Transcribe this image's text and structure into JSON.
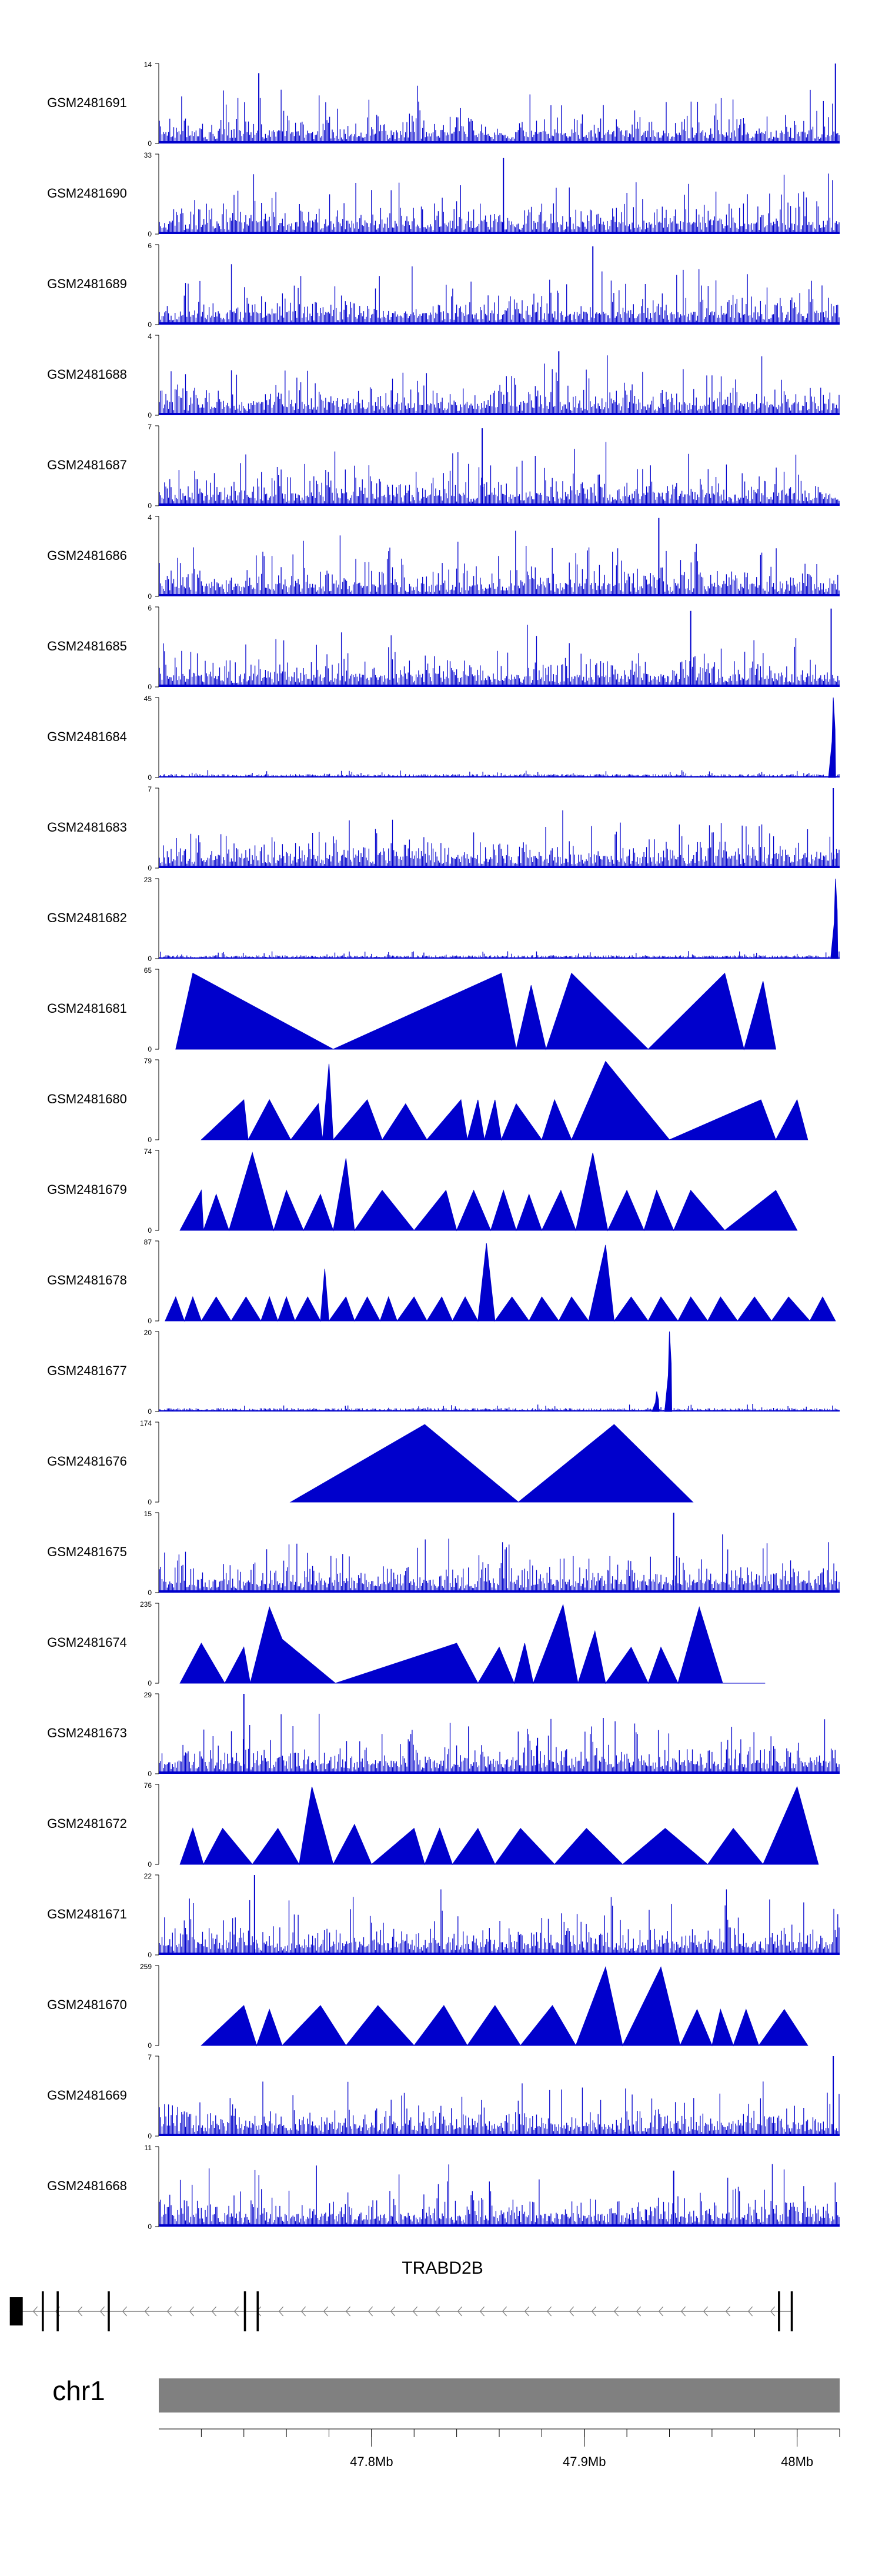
{
  "chart_data": {
    "type": "area",
    "colors": {
      "signal": "#0000cc",
      "ideogram": "#808080"
    },
    "tracks": [
      {
        "name": "GSM2481691",
        "ylim": [
          0,
          14
        ],
        "style": "spiky",
        "peaks": [
          [
            47.747,
            0.88
          ],
          [
            48.018,
            1.0
          ]
        ]
      },
      {
        "name": "GSM2481690",
        "ylim": [
          0,
          33
        ],
        "style": "spiky",
        "peaks": [
          [
            47.862,
            0.95
          ]
        ]
      },
      {
        "name": "GSM2481689",
        "ylim": [
          0,
          6
        ],
        "style": "spiky",
        "peaks": [
          [
            47.904,
            0.98
          ]
        ]
      },
      {
        "name": "GSM2481688",
        "ylim": [
          0,
          4
        ],
        "style": "spiky",
        "peaks": [
          [
            47.888,
            0.8
          ]
        ]
      },
      {
        "name": "GSM2481687",
        "ylim": [
          0,
          7
        ],
        "style": "spiky",
        "peaks": [
          [
            47.852,
            0.97
          ]
        ]
      },
      {
        "name": "GSM2481686",
        "ylim": [
          0,
          4
        ],
        "style": "spiky",
        "peaks": [
          [
            47.935,
            0.98
          ]
        ]
      },
      {
        "name": "GSM2481685",
        "ylim": [
          0,
          6
        ],
        "style": "spiky",
        "peaks": [
          [
            47.95,
            0.95
          ],
          [
            48.016,
            0.98
          ]
        ]
      },
      {
        "name": "GSM2481684",
        "ylim": [
          0,
          45
        ],
        "style": "lowpeak",
        "peaks": [
          [
            48.017,
            1.0
          ]
        ]
      },
      {
        "name": "GSM2481683",
        "ylim": [
          0,
          7
        ],
        "style": "spiky",
        "peaks": [
          [
            48.017,
            1.0
          ]
        ]
      },
      {
        "name": "GSM2481682",
        "ylim": [
          0,
          23
        ],
        "style": "lowpeak",
        "peaks": [
          [
            48.018,
            1.0
          ]
        ]
      },
      {
        "name": "GSM2481681",
        "ylim": [
          0,
          65
        ],
        "style": "triangles",
        "vertices": [
          [
            47.708,
            0
          ],
          [
            47.716,
            0.95
          ],
          [
            47.782,
            0
          ],
          [
            47.861,
            0.95
          ],
          [
            47.868,
            0
          ],
          [
            47.875,
            0.8
          ],
          [
            47.882,
            0
          ],
          [
            47.894,
            0.95
          ],
          [
            47.93,
            0
          ],
          [
            47.966,
            0.95
          ],
          [
            47.975,
            0
          ],
          [
            47.984,
            0.85
          ],
          [
            47.99,
            0
          ]
        ]
      },
      {
        "name": "GSM2481680",
        "ylim": [
          0,
          79
        ],
        "style": "triangles",
        "vertices": [
          [
            47.72,
            0
          ],
          [
            47.74,
            0.5
          ],
          [
            47.742,
            0
          ],
          [
            47.752,
            0.5
          ],
          [
            47.762,
            0
          ],
          [
            47.775,
            0.45
          ],
          [
            47.777,
            0
          ],
          [
            47.78,
            0.95
          ],
          [
            47.782,
            0
          ],
          [
            47.798,
            0.5
          ],
          [
            47.805,
            0
          ],
          [
            47.816,
            0.45
          ],
          [
            47.826,
            0
          ],
          [
            47.842,
            0.5
          ],
          [
            47.845,
            0
          ],
          [
            47.85,
            0.5
          ],
          [
            47.853,
            0
          ],
          [
            47.858,
            0.5
          ],
          [
            47.861,
            0
          ],
          [
            47.868,
            0.45
          ],
          [
            47.88,
            0
          ],
          [
            47.886,
            0.5
          ],
          [
            47.894,
            0
          ],
          [
            47.91,
            0.98
          ],
          [
            47.94,
            0
          ],
          [
            47.983,
            0.5
          ],
          [
            47.99,
            0
          ],
          [
            48.0,
            0.5
          ],
          [
            48.005,
            0
          ]
        ]
      },
      {
        "name": "GSM2481679",
        "ylim": [
          0,
          74
        ],
        "style": "triangles",
        "vertices": [
          [
            47.71,
            0
          ],
          [
            47.72,
            0.5
          ],
          [
            47.721,
            0
          ],
          [
            47.727,
            0.45
          ],
          [
            47.733,
            0
          ],
          [
            47.744,
            0.97
          ],
          [
            47.754,
            0
          ],
          [
            47.76,
            0.5
          ],
          [
            47.768,
            0
          ],
          [
            47.776,
            0.45
          ],
          [
            47.782,
            0
          ],
          [
            47.788,
            0.9
          ],
          [
            47.792,
            0
          ],
          [
            47.805,
            0.5
          ],
          [
            47.82,
            0
          ],
          [
            47.835,
            0.5
          ],
          [
            47.84,
            0
          ],
          [
            47.848,
            0.5
          ],
          [
            47.856,
            0
          ],
          [
            47.862,
            0.5
          ],
          [
            47.868,
            0
          ],
          [
            47.874,
            0.45
          ],
          [
            47.88,
            0
          ],
          [
            47.889,
            0.5
          ],
          [
            47.896,
            0
          ],
          [
            47.904,
            0.97
          ],
          [
            47.911,
            0
          ],
          [
            47.92,
            0.5
          ],
          [
            47.928,
            0
          ],
          [
            47.934,
            0.5
          ],
          [
            47.942,
            0
          ],
          [
            47.95,
            0.5
          ],
          [
            47.966,
            0
          ],
          [
            47.99,
            0.5
          ],
          [
            48.0,
            0
          ]
        ]
      },
      {
        "name": "GSM2481678",
        "ylim": [
          0,
          87
        ],
        "style": "triangles",
        "vertices": [
          [
            47.703,
            0
          ],
          [
            47.708,
            0.3
          ],
          [
            47.712,
            0
          ],
          [
            47.716,
            0.3
          ],
          [
            47.72,
            0
          ],
          [
            47.727,
            0.3
          ],
          [
            47.734,
            0
          ],
          [
            47.741,
            0.3
          ],
          [
            47.748,
            0
          ],
          [
            47.752,
            0.3
          ],
          [
            47.756,
            0
          ],
          [
            47.76,
            0.3
          ],
          [
            47.764,
            0
          ],
          [
            47.77,
            0.3
          ],
          [
            47.776,
            0
          ],
          [
            47.778,
            0.65
          ],
          [
            47.78,
            0
          ],
          [
            47.788,
            0.3
          ],
          [
            47.792,
            0
          ],
          [
            47.798,
            0.3
          ],
          [
            47.804,
            0
          ],
          [
            47.808,
            0.3
          ],
          [
            47.812,
            0
          ],
          [
            47.82,
            0.3
          ],
          [
            47.826,
            0
          ],
          [
            47.833,
            0.3
          ],
          [
            47.838,
            0
          ],
          [
            47.844,
            0.3
          ],
          [
            47.85,
            0
          ],
          [
            47.854,
            0.97
          ],
          [
            47.858,
            0
          ],
          [
            47.866,
            0.3
          ],
          [
            47.874,
            0
          ],
          [
            47.88,
            0.3
          ],
          [
            47.888,
            0
          ],
          [
            47.894,
            0.3
          ],
          [
            47.902,
            0
          ],
          [
            47.91,
            0.95
          ],
          [
            47.914,
            0
          ],
          [
            47.922,
            0.3
          ],
          [
            47.93,
            0
          ],
          [
            47.936,
            0.3
          ],
          [
            47.944,
            0
          ],
          [
            47.95,
            0.3
          ],
          [
            47.958,
            0
          ],
          [
            47.964,
            0.3
          ],
          [
            47.972,
            0
          ],
          [
            47.98,
            0.3
          ],
          [
            47.988,
            0
          ],
          [
            47.996,
            0.3
          ],
          [
            48.006,
            0
          ],
          [
            48.012,
            0.3
          ],
          [
            48.018,
            0
          ]
        ]
      },
      {
        "name": "GSM2481677",
        "ylim": [
          0,
          20
        ],
        "style": "lowpeak",
        "peaks": [
          [
            47.94,
            1.0
          ],
          [
            47.934,
            0.25
          ]
        ]
      },
      {
        "name": "GSM2481676",
        "ylim": [
          0,
          174
        ],
        "style": "triangles",
        "vertices": [
          [
            47.762,
            0
          ],
          [
            47.825,
            0.97
          ],
          [
            47.869,
            0
          ],
          [
            47.914,
            0.97
          ],
          [
            47.951,
            0
          ]
        ]
      },
      {
        "name": "GSM2481675",
        "ylim": [
          0,
          15
        ],
        "style": "spiky",
        "peaks": [
          [
            47.942,
            1.0
          ]
        ]
      },
      {
        "name": "GSM2481674",
        "ylim": [
          0,
          235
        ],
        "style": "triangles",
        "vertices": [
          [
            47.71,
            0
          ],
          [
            47.72,
            0.5
          ],
          [
            47.731,
            0
          ],
          [
            47.74,
            0.45
          ],
          [
            47.743,
            0
          ],
          [
            47.752,
            0.95
          ],
          [
            47.758,
            0.55
          ],
          [
            47.783,
            0
          ],
          [
            47.84,
            0.5
          ],
          [
            47.85,
            0
          ],
          [
            47.86,
            0.45
          ],
          [
            47.867,
            0
          ],
          [
            47.872,
            0.5
          ],
          [
            47.876,
            0
          ],
          [
            47.89,
            0.98
          ],
          [
            47.897,
            0
          ],
          [
            47.905,
            0.65
          ],
          [
            47.91,
            0
          ],
          [
            47.922,
            0.45
          ],
          [
            47.93,
            0
          ],
          [
            47.936,
            0.45
          ],
          [
            47.944,
            0
          ],
          [
            47.954,
            0.95
          ],
          [
            47.965,
            0
          ],
          [
            47.985,
            0
          ]
        ]
      },
      {
        "name": "GSM2481673",
        "ylim": [
          0,
          29
        ],
        "style": "spiky",
        "peaks": [
          [
            47.74,
            1.0
          ],
          [
            47.878,
            0.45
          ]
        ]
      },
      {
        "name": "GSM2481672",
        "ylim": [
          0,
          76
        ],
        "style": "triangles",
        "vertices": [
          [
            47.71,
            0
          ],
          [
            47.716,
            0.45
          ],
          [
            47.721,
            0
          ],
          [
            47.73,
            0.45
          ],
          [
            47.744,
            0
          ],
          [
            47.756,
            0.45
          ],
          [
            47.766,
            0
          ],
          [
            47.772,
            0.97
          ],
          [
            47.782,
            0
          ],
          [
            47.792,
            0.5
          ],
          [
            47.8,
            0
          ],
          [
            47.82,
            0.45
          ],
          [
            47.825,
            0
          ],
          [
            47.832,
            0.45
          ],
          [
            47.838,
            0
          ],
          [
            47.85,
            0.45
          ],
          [
            47.858,
            0
          ],
          [
            47.87,
            0.45
          ],
          [
            47.886,
            0
          ],
          [
            47.901,
            0.45
          ],
          [
            47.918,
            0
          ],
          [
            47.938,
            0.45
          ],
          [
            47.958,
            0
          ],
          [
            47.97,
            0.45
          ],
          [
            47.984,
            0
          ],
          [
            48.0,
            0.97
          ],
          [
            48.01,
            0
          ]
        ]
      },
      {
        "name": "GSM2481671",
        "ylim": [
          0,
          22
        ],
        "style": "spiky",
        "peaks": [
          [
            47.745,
            1.0
          ]
        ]
      },
      {
        "name": "GSM2481670",
        "ylim": [
          0,
          259
        ],
        "style": "triangles",
        "vertices": [
          [
            47.72,
            0
          ],
          [
            47.74,
            0.5
          ],
          [
            47.746,
            0
          ],
          [
            47.752,
            0.45
          ],
          [
            47.758,
            0
          ],
          [
            47.776,
            0.5
          ],
          [
            47.788,
            0
          ],
          [
            47.803,
            0.5
          ],
          [
            47.82,
            0
          ],
          [
            47.834,
            0.5
          ],
          [
            47.845,
            0
          ],
          [
            47.858,
            0.5
          ],
          [
            47.87,
            0
          ],
          [
            47.885,
            0.5
          ],
          [
            47.896,
            0
          ],
          [
            47.91,
            0.98
          ],
          [
            47.918,
            0
          ],
          [
            47.936,
            0.98
          ],
          [
            47.945,
            0
          ],
          [
            47.953,
            0.45
          ],
          [
            47.96,
            0
          ],
          [
            47.964,
            0.45
          ],
          [
            47.97,
            0
          ],
          [
            47.976,
            0.45
          ],
          [
            47.982,
            0
          ],
          [
            47.994,
            0.45
          ],
          [
            48.005,
            0
          ]
        ]
      },
      {
        "name": "GSM2481669",
        "ylim": [
          0,
          7
        ],
        "style": "spiky",
        "peaks": [
          [
            48.017,
            1.0
          ]
        ]
      },
      {
        "name": "GSM2481668",
        "ylim": [
          0,
          11
        ],
        "style": "spiky",
        "peaks": [
          [
            47.942,
            0.7
          ]
        ]
      }
    ],
    "gene": {
      "name": "TRABD2B",
      "strand": "-",
      "start": 47.63,
      "end": 47.998,
      "exons": [
        [
          47.63,
          47.633
        ],
        [
          47.645,
          47.646
        ],
        [
          47.652,
          47.653
        ],
        [
          47.676,
          47.677
        ],
        [
          47.74,
          47.741
        ],
        [
          47.746,
          47.747
        ],
        [
          47.991,
          47.992
        ],
        [
          47.997,
          47.998
        ]
      ]
    },
    "chromosome": "chr1",
    "xlim": [
      47.7,
      48.02
    ],
    "xticks": [
      47.8,
      47.9,
      48.0
    ],
    "xtick_labels": [
      "47.8Mb",
      "47.9Mb",
      "48Mb"
    ]
  }
}
